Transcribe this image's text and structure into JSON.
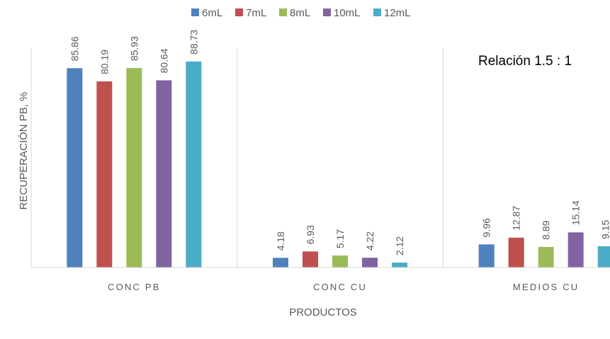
{
  "chart_data": {
    "type": "bar",
    "categories": [
      "CONC PB",
      "CONC CU",
      "MEDIOS CU"
    ],
    "series": [
      {
        "name": "6mL",
        "color": "#4F81BD",
        "values": [
          85.86,
          4.18,
          9.96
        ]
      },
      {
        "name": "7mL",
        "color": "#C0504D",
        "values": [
          80.19,
          6.93,
          12.87
        ]
      },
      {
        "name": "8mL",
        "color": "#9BBB59",
        "values": [
          85.93,
          5.17,
          8.89
        ]
      },
      {
        "name": "10mL",
        "color": "#8064A2",
        "values": [
          80.64,
          4.22,
          15.14
        ]
      },
      {
        "name": "12mL",
        "color": "#4BACC6",
        "values": [
          88.73,
          2.12,
          9.15
        ]
      }
    ],
    "xlabel": "PRODUCTOS",
    "ylabel": "RECUPERACIÓN PB, %",
    "annotation": "Relación 1.5 : 1",
    "ylim": [
      0,
      100
    ],
    "grid": false,
    "legend_position": "top"
  }
}
